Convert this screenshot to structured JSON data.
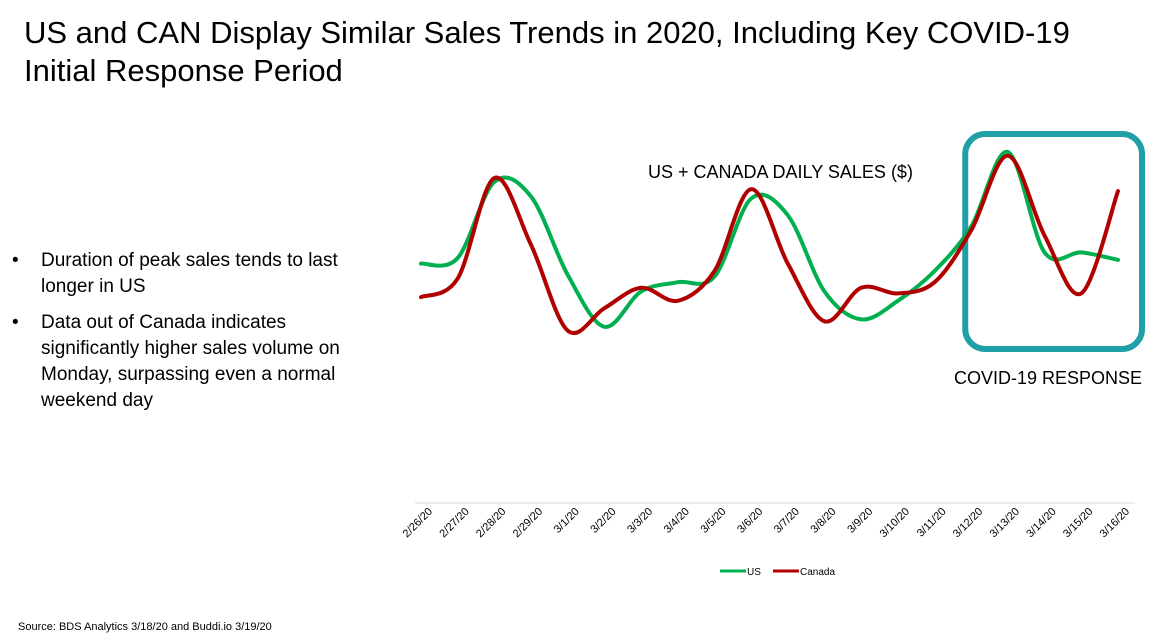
{
  "slide": {
    "title": "US and CAN Display Similar Sales Trends in 2020, Including Key COVID-19 Initial Response Period",
    "bullets": [
      "Duration of peak sales tends to last longer in US",
      "Data out of Canada indicates significantly higher sales volume on Monday, surpassing even a normal weekend day"
    ],
    "covid_label": "COVID-19 RESPONSE",
    "source": "Source: BDS Analytics 3/18/20 and Buddi.io 3/19/20"
  },
  "colors": {
    "us": "#00b050",
    "canada": "#b00000",
    "highlight_box": "#1f9fa6",
    "axis": "#d9d9d9"
  },
  "chart_data": {
    "type": "line",
    "title": "US + CANADA DAILY SALES ($)",
    "x": [
      "2/26/20",
      "2/27/20",
      "2/28/20",
      "2/29/20",
      "3/1/20",
      "3/2/20",
      "3/3/20",
      "3/4/20",
      "3/5/20",
      "3/6/20",
      "3/7/20",
      "3/8/20",
      "3/9/20",
      "3/10/20",
      "3/11/20",
      "3/12/20",
      "3/13/20",
      "3/14/20",
      "3/15/20",
      "3/16/20"
    ],
    "series": [
      {
        "name": "US",
        "values": [
          0.4,
          0.43,
          0.84,
          0.76,
          0.34,
          0.06,
          0.25,
          0.3,
          0.33,
          0.75,
          0.66,
          0.25,
          0.1,
          0.2,
          0.36,
          0.6,
          1.0,
          0.46,
          0.46,
          0.42
        ]
      },
      {
        "name": "Canada",
        "values": [
          0.22,
          0.32,
          0.86,
          0.5,
          0.04,
          0.16,
          0.27,
          0.2,
          0.36,
          0.8,
          0.4,
          0.09,
          0.27,
          0.24,
          0.3,
          0.58,
          0.98,
          0.55,
          0.24,
          0.79
        ]
      }
    ],
    "highlight": {
      "from": "3/12/20",
      "to": "3/16/20",
      "label": "COVID-19 RESPONSE"
    },
    "legend": "bottom",
    "grid": false,
    "y_axis_labels": false
  }
}
